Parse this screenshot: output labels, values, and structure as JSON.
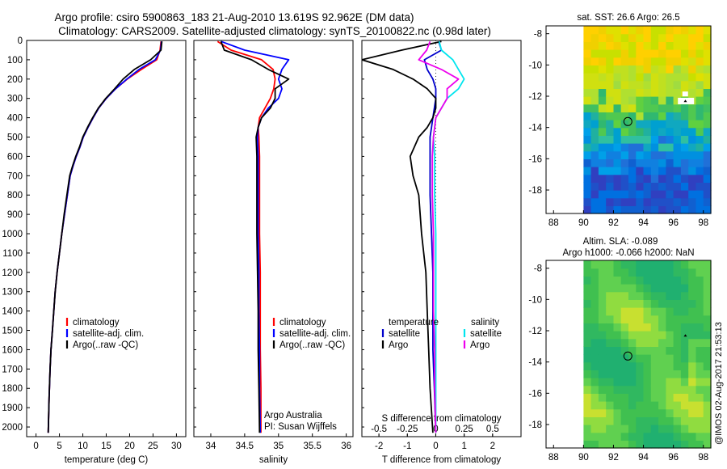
{
  "figure": {
    "title_line1": "Argo profile: csiro 5900863_183 21-Aug-2010 13.619S 92.962E (DM data)",
    "title_line2": "Climatology: CARS2009. Satellite-adjusted climatology: synTS_20100822.nc (0.98d later)",
    "watermark": "@IMOS 02-Aug-2017 21:53:13"
  },
  "colors": {
    "climatology": "#ff0000",
    "satellite": "#0000ff",
    "argo": "#000000",
    "t_sat": "#0000cc",
    "t_argo": "#000000",
    "s_sat": "#00e5ee",
    "s_argo": "#ee00ee"
  },
  "chart_data": [
    {
      "type": "line",
      "name": "temperature-profile",
      "xlabel": "temperature (deg C)",
      "ylabel": "",
      "xlim": [
        -2,
        32
      ],
      "ylim": [
        2050,
        0
      ],
      "xticks": [
        0,
        5,
        10,
        15,
        20,
        25,
        30
      ],
      "yticks": [
        0,
        100,
        200,
        300,
        400,
        500,
        600,
        700,
        800,
        900,
        1000,
        1100,
        1200,
        1300,
        1400,
        1500,
        1600,
        1700,
        1800,
        1900,
        2000
      ],
      "legend": [
        "climatology",
        "satellite-adj. clim.",
        "Argo(..raw -QC)"
      ],
      "series": [
        {
          "name": "climatology",
          "color_key": "climatology",
          "x": [
            26.7,
            26.5,
            25.8,
            22.5,
            19.5,
            17.0,
            15.0,
            13.4,
            12.2,
            11.1,
            10.1,
            9.4,
            8.6,
            7.9,
            7.3,
            6.7,
            6.1,
            5.5,
            5.0,
            4.5,
            4.1,
            3.8,
            3.5,
            3.2,
            3.0,
            2.8,
            2.6
          ],
          "y": [
            5,
            50,
            100,
            150,
            200,
            250,
            300,
            350,
            400,
            450,
            500,
            550,
            600,
            650,
            700,
            800,
            900,
            1000,
            1100,
            1200,
            1300,
            1400,
            1500,
            1600,
            1700,
            1850,
            2030
          ]
        },
        {
          "name": "satellite-adj. clim.",
          "color_key": "satellite",
          "x": [
            26.8,
            26.6,
            25.5,
            22.0,
            19.4,
            17.0,
            15.0,
            13.4,
            12.2,
            11.1,
            10.1,
            9.4,
            8.6,
            7.9,
            7.3,
            6.7,
            6.1,
            5.5,
            5.0,
            4.5,
            4.1,
            3.8,
            3.5,
            3.2,
            3.0,
            2.8,
            2.6
          ],
          "y": [
            5,
            50,
            100,
            150,
            200,
            250,
            300,
            350,
            400,
            450,
            500,
            550,
            600,
            650,
            700,
            800,
            900,
            1000,
            1100,
            1200,
            1300,
            1400,
            1500,
            1600,
            1700,
            1850,
            2030
          ]
        },
        {
          "name": "Argo(..raw -QC)",
          "color_key": "argo",
          "x": [
            26.9,
            26.7,
            24.5,
            21.0,
            18.6,
            16.8,
            14.9,
            13.3,
            12.1,
            11.0,
            10.0,
            9.3,
            8.5,
            7.8,
            7.2,
            6.6,
            6.0,
            5.5,
            5.0,
            4.5,
            4.1,
            3.8,
            3.5,
            3.2,
            3.0,
            2.8,
            2.6
          ],
          "y": [
            5,
            50,
            100,
            150,
            200,
            250,
            300,
            350,
            400,
            450,
            500,
            550,
            600,
            650,
            700,
            800,
            900,
            1000,
            1100,
            1200,
            1300,
            1400,
            1500,
            1600,
            1700,
            1850,
            2030
          ]
        }
      ]
    },
    {
      "type": "line",
      "name": "salinity-profile",
      "xlabel": "salinity",
      "xlim": [
        33.75,
        36.1
      ],
      "ylim": [
        2050,
        0
      ],
      "xticks": [
        34,
        34.5,
        35,
        35.5,
        36
      ],
      "legend": [
        "climatology",
        "satellite-adj. clim.",
        "Argo(..raw -QC)"
      ],
      "annotation": [
        "Argo Australia",
        "PI: Susan Wijffels"
      ],
      "series": [
        {
          "name": "climatology",
          "color_key": "climatology",
          "x": [
            34.1,
            34.3,
            34.75,
            34.92,
            34.95,
            34.93,
            34.88,
            34.8,
            34.72,
            34.7,
            34.71,
            34.72,
            34.72,
            34.72,
            34.72,
            34.73,
            34.73,
            34.73,
            34.74,
            34.74
          ],
          "y": [
            5,
            50,
            100,
            150,
            200,
            250,
            300,
            350,
            400,
            450,
            500,
            600,
            700,
            800,
            1000,
            1200,
            1400,
            1600,
            1800,
            2030
          ]
        },
        {
          "name": "satellite-adj. clim.",
          "color_key": "satellite",
          "x": [
            34.15,
            34.5,
            35.15,
            35.05,
            35.0,
            35.05,
            35.0,
            34.85,
            34.75,
            34.7,
            34.69,
            34.7,
            34.7,
            34.7,
            34.7,
            34.71,
            34.71,
            34.72,
            34.72,
            34.73
          ],
          "y": [
            5,
            50,
            100,
            150,
            200,
            250,
            300,
            350,
            400,
            450,
            500,
            600,
            700,
            800,
            1000,
            1200,
            1400,
            1600,
            1800,
            2030
          ]
        },
        {
          "name": "Argo(..raw -QC)",
          "color_key": "argo",
          "x": [
            34.15,
            34.2,
            34.6,
            34.85,
            35.15,
            34.95,
            34.95,
            34.88,
            34.75,
            34.7,
            34.67,
            34.68,
            34.68,
            34.68,
            34.68,
            34.69,
            34.7,
            34.7,
            34.71,
            34.72
          ],
          "y": [
            5,
            50,
            100,
            150,
            200,
            250,
            300,
            350,
            400,
            450,
            500,
            600,
            700,
            800,
            1000,
            1200,
            1400,
            1600,
            1800,
            2030
          ]
        }
      ]
    },
    {
      "type": "line",
      "name": "difference-profile",
      "xlabel": "T difference from climatology",
      "xlabel_top": "S difference from climatology",
      "xlim": [
        -2.6,
        3.0
      ],
      "ylim": [
        2050,
        0
      ],
      "xticks_t": [
        -2,
        -1,
        0,
        1,
        2
      ],
      "xticks_s": [
        -0.5,
        -0.25,
        0,
        0.25,
        0.5
      ],
      "legend_t_title": "temperature",
      "legend_s_title": "salinity",
      "legend_t": [
        "satellite",
        "Argo"
      ],
      "legend_s": [
        "satellite",
        "Argo"
      ],
      "series": [
        {
          "name": "temperature satellite",
          "color_key": "t_sat",
          "x": [
            0.1,
            0.2,
            -0.4,
            -0.3,
            -0.1,
            0.0,
            0.0,
            -0.05,
            -0.1,
            -0.15,
            -0.2,
            -0.2,
            -0.2,
            -0.2,
            -0.15,
            -0.1,
            -0.1,
            -0.1,
            -0.05,
            0.0
          ],
          "y": [
            5,
            50,
            100,
            150,
            200,
            250,
            300,
            350,
            400,
            450,
            500,
            600,
            700,
            800,
            1000,
            1200,
            1400,
            1600,
            1800,
            2030
          ]
        },
        {
          "name": "temperature Argo",
          "color_key": "t_argo",
          "x": [
            0.2,
            -1.2,
            -2.6,
            -1.5,
            -0.8,
            -0.3,
            0.0,
            0.0,
            -0.1,
            -0.3,
            -0.6,
            -0.9,
            -0.8,
            -0.6,
            -0.5,
            -0.35,
            -0.3,
            -0.25,
            -0.2,
            -0.1
          ],
          "y": [
            5,
            50,
            100,
            150,
            200,
            250,
            300,
            350,
            400,
            450,
            500,
            600,
            700,
            800,
            1000,
            1200,
            1400,
            1600,
            1800,
            2030
          ]
        },
        {
          "name": "salinity satellite",
          "color_key": "s_sat",
          "x": [
            0.03,
            0.05,
            0.15,
            0.2,
            0.25,
            0.2,
            0.1,
            0.05,
            0.0,
            -0.01,
            -0.02,
            -0.01,
            -0.01,
            -0.01,
            0.0,
            0.0,
            0.0,
            0.0,
            0.0,
            0.0
          ],
          "y": [
            5,
            50,
            100,
            150,
            200,
            250,
            300,
            350,
            400,
            450,
            500,
            600,
            700,
            800,
            1000,
            1200,
            1400,
            1600,
            1800,
            2030
          ]
        },
        {
          "name": "salinity Argo",
          "color_key": "s_argo",
          "x": [
            -0.05,
            -0.08,
            -0.15,
            0.05,
            0.2,
            0.1,
            0.1,
            0.05,
            0.0,
            -0.01,
            -0.02,
            -0.03,
            -0.03,
            -0.03,
            -0.02,
            -0.02,
            -0.02,
            -0.01,
            -0.01,
            0.0
          ],
          "y": [
            5,
            50,
            100,
            150,
            200,
            250,
            300,
            350,
            400,
            450,
            500,
            600,
            700,
            800,
            1000,
            1200,
            1400,
            1600,
            1800,
            2030
          ]
        }
      ]
    },
    {
      "type": "heatmap",
      "name": "sst-map",
      "title": "sat. SST: 26.6  Argo: 26.5",
      "xlim": [
        87.5,
        98.5
      ],
      "ylim": [
        -19.5,
        -7.5
      ],
      "xticks": [
        88,
        90,
        92,
        94,
        96,
        98
      ],
      "yticks": [
        -8,
        -10,
        -12,
        -14,
        -16,
        -18
      ],
      "data_xrange": [
        90,
        98
      ],
      "argo_position": [
        92.962,
        -13.619
      ],
      "float_marker": [
        96.8,
        -12.3
      ]
    },
    {
      "type": "heatmap",
      "name": "sla-map",
      "title_line1": "Altim. SLA: -0.089",
      "title_line2": "Argo h1000: -0.066  h2000: NaN",
      "xlim": [
        87.5,
        98.5
      ],
      "ylim": [
        -19.5,
        -7.5
      ],
      "xticks": [
        88,
        90,
        92,
        94,
        96,
        98
      ],
      "yticks": [
        -8,
        -10,
        -12,
        -14,
        -16,
        -18
      ],
      "data_xrange": [
        90,
        98
      ],
      "argo_position": [
        92.962,
        -13.619
      ],
      "float_marker": [
        96.8,
        -12.3
      ]
    }
  ]
}
